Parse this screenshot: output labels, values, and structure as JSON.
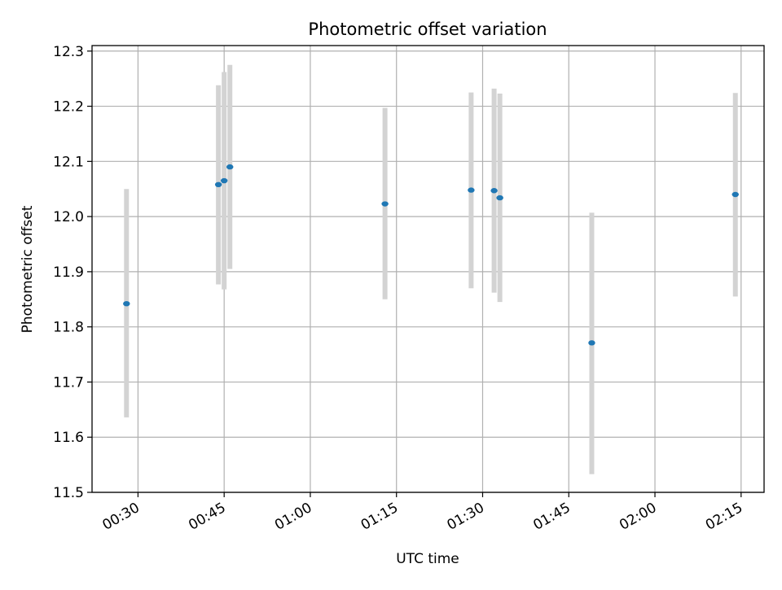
{
  "chart_data": {
    "type": "scatter",
    "title": "Photometric offset variation",
    "xlabel": "UTC time",
    "ylabel": "Photometric offset",
    "xlim": [
      "00:22",
      "02:19"
    ],
    "ylim": [
      11.5,
      12.31
    ],
    "grid": true,
    "x_ticks": [
      "00:30",
      "00:45",
      "01:00",
      "01:15",
      "01:30",
      "01:45",
      "02:00",
      "02:15"
    ],
    "y_ticks": [
      "11.5",
      "11.6",
      "11.7",
      "11.8",
      "11.9",
      "12.0",
      "12.1",
      "12.2",
      "12.3"
    ],
    "points": [
      {
        "time": "00:28",
        "y": 11.842,
        "err_low": 11.636,
        "err_high": 12.05
      },
      {
        "time": "00:44",
        "y": 12.058,
        "err_low": 11.877,
        "err_high": 12.238
      },
      {
        "time": "00:45",
        "y": 12.065,
        "err_low": 11.868,
        "err_high": 12.262
      },
      {
        "time": "00:46",
        "y": 12.09,
        "err_low": 11.905,
        "err_high": 12.275
      },
      {
        "time": "01:13",
        "y": 12.023,
        "err_low": 11.85,
        "err_high": 12.197
      },
      {
        "time": "01:28",
        "y": 12.048,
        "err_low": 11.87,
        "err_high": 12.225
      },
      {
        "time": "01:32",
        "y": 12.047,
        "err_low": 11.862,
        "err_high": 12.232
      },
      {
        "time": "01:33",
        "y": 12.034,
        "err_low": 11.845,
        "err_high": 12.223
      },
      {
        "time": "01:49",
        "y": 11.771,
        "err_low": 11.533,
        "err_high": 12.007
      },
      {
        "time": "02:14",
        "y": 12.04,
        "err_low": 11.855,
        "err_high": 12.224
      }
    ],
    "colors": {
      "marker": "#1f77b4",
      "errorbar": "#d3d3d3",
      "grid": "#b0b0b0",
      "axes": "#000000"
    }
  }
}
